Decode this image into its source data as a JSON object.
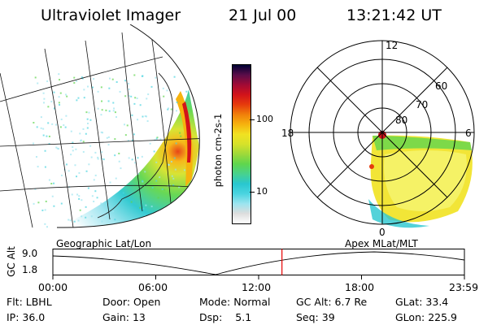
{
  "header": {
    "title": "Ultraviolet Imager",
    "date": "21 Jul 00",
    "time": "13:21:42 UT"
  },
  "colorbar": {
    "label": "photon cm-2s-1",
    "ticks": [
      "100",
      "10"
    ],
    "colors": [
      "#ffffff",
      "#dddddd",
      "#9be4ef",
      "#4ad4e0",
      "#29c7cf",
      "#47d28e",
      "#5fd64d",
      "#9ed93a",
      "#d6e22a",
      "#f1e221",
      "#f6b30e",
      "#f07f0a",
      "#e63b0c",
      "#d2131a",
      "#a10a35",
      "#5a0d49",
      "#000033"
    ]
  },
  "polar": {
    "labels": {
      "top": "12",
      "left": "18",
      "right": "6",
      "bottom": "0"
    },
    "rings": [
      "80",
      "70",
      "60"
    ]
  },
  "timeline": {
    "left_label": "Geographic Lat/Lon",
    "right_label": "Apex MLat/MLT",
    "axis_title": "GC Alt",
    "y_top": "9.0",
    "y_bottom": "1.8",
    "ticks": [
      "00:00",
      "06:00",
      "12:00",
      "18:00",
      "23:59"
    ],
    "current_marker_hours": 13.36,
    "marker_color": "#e60000"
  },
  "info": {
    "flt_label": "Flt:",
    "flt_value": "LBHL",
    "ip_label": "IP:",
    "ip_value": "36.0",
    "door_label": "Door:",
    "door_value": "Open",
    "gain_label": "Gain:",
    "gain_value": "13",
    "mode_label": "Mode:",
    "mode_value": "Normal",
    "dsp_label": "Dsp:",
    "dsp_value": "5.1",
    "gcalt_label": "GC Alt:",
    "gcalt_value": "6.7 Re",
    "seq_label": "Seq:",
    "seq_value": "39",
    "glat_label": "GLat:",
    "glat_value": "33.4",
    "glon_label": "GLon:",
    "glon_value": "225.9"
  }
}
